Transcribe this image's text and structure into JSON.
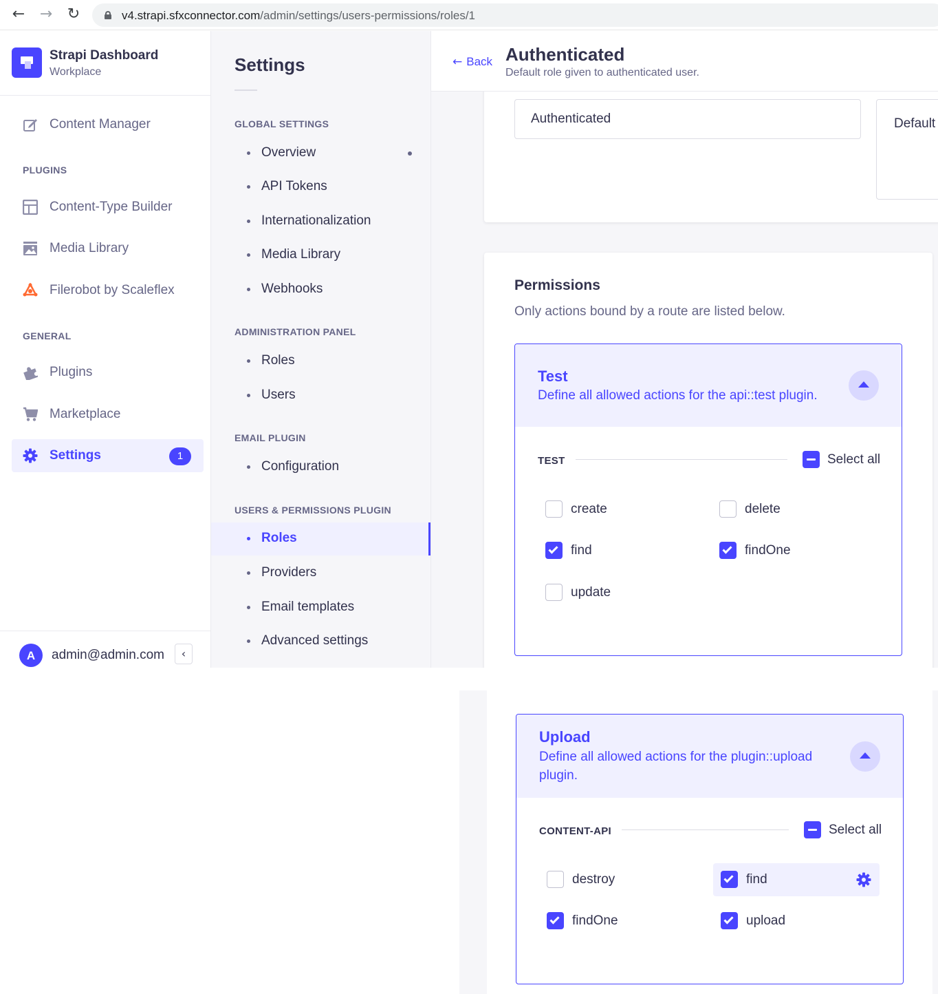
{
  "browser": {
    "url_host": "v4.strapi.sfxconnector.com",
    "url_path": "/admin/settings/users-permissions/roles/1",
    "back_icon": "arrow-left-icon",
    "forward_icon": "arrow-right-icon",
    "reload_icon": "reload-icon"
  },
  "brand": {
    "title": "Strapi Dashboard",
    "subtitle": "Workplace"
  },
  "left_nav": {
    "content_manager": "Content Manager",
    "plugins_section": "PLUGINS",
    "content_type_builder": "Content-Type Builder",
    "media_library": "Media Library",
    "filerobot": "Filerobot by Scaleflex",
    "general_section": "GENERAL",
    "plugins": "Plugins",
    "marketplace": "Marketplace",
    "settings": "Settings",
    "settings_badge": "1"
  },
  "profile": {
    "initial": "A",
    "email": "admin@admin.com"
  },
  "settings_nav": {
    "title": "Settings",
    "global_section": "GLOBAL SETTINGS",
    "overview": "Overview",
    "api_tokens": "API Tokens",
    "internationalization": "Internationalization",
    "media_library": "Media Library",
    "webhooks": "Webhooks",
    "admin_section": "ADMINISTRATION PANEL",
    "roles": "Roles",
    "users": "Users",
    "email_section": "EMAIL PLUGIN",
    "configuration": "Configuration",
    "up_section": "USERS & PERMISSIONS PLUGIN",
    "up_roles": "Roles",
    "providers": "Providers",
    "email_templates": "Email templates",
    "advanced_settings": "Advanced settings"
  },
  "header": {
    "back": "Back",
    "title": "Authenticated",
    "subtitle": "Default role given to authenticated user."
  },
  "details": {
    "name_value": "Authenticated",
    "description_value": "Default role given to authenticated user."
  },
  "permissions": {
    "title": "Permissions",
    "subtitle": "Only actions bound by a route are listed below.",
    "test": {
      "title": "Test",
      "description": "Define all allowed actions for the api::test plugin.",
      "group": "TEST",
      "select_all": "Select all",
      "actions": [
        {
          "label": "create",
          "checked": false
        },
        {
          "label": "delete",
          "checked": false
        },
        {
          "label": "find",
          "checked": true
        },
        {
          "label": "findOne",
          "checked": true
        },
        {
          "label": "update",
          "checked": false
        }
      ]
    },
    "upload": {
      "title": "Upload",
      "description": "Define all allowed actions for the plugin::upload plugin.",
      "group": "CONTENT-API",
      "select_all": "Select all",
      "actions": [
        {
          "label": "destroy",
          "checked": false
        },
        {
          "label": "find",
          "checked": true
        },
        {
          "label": "findOne",
          "checked": true
        },
        {
          "label": "upload",
          "checked": true
        }
      ]
    }
  },
  "colors": {
    "primary": "#4945ff",
    "primary_light": "#f0f0ff",
    "text": "#32324d",
    "muted": "#666687"
  }
}
